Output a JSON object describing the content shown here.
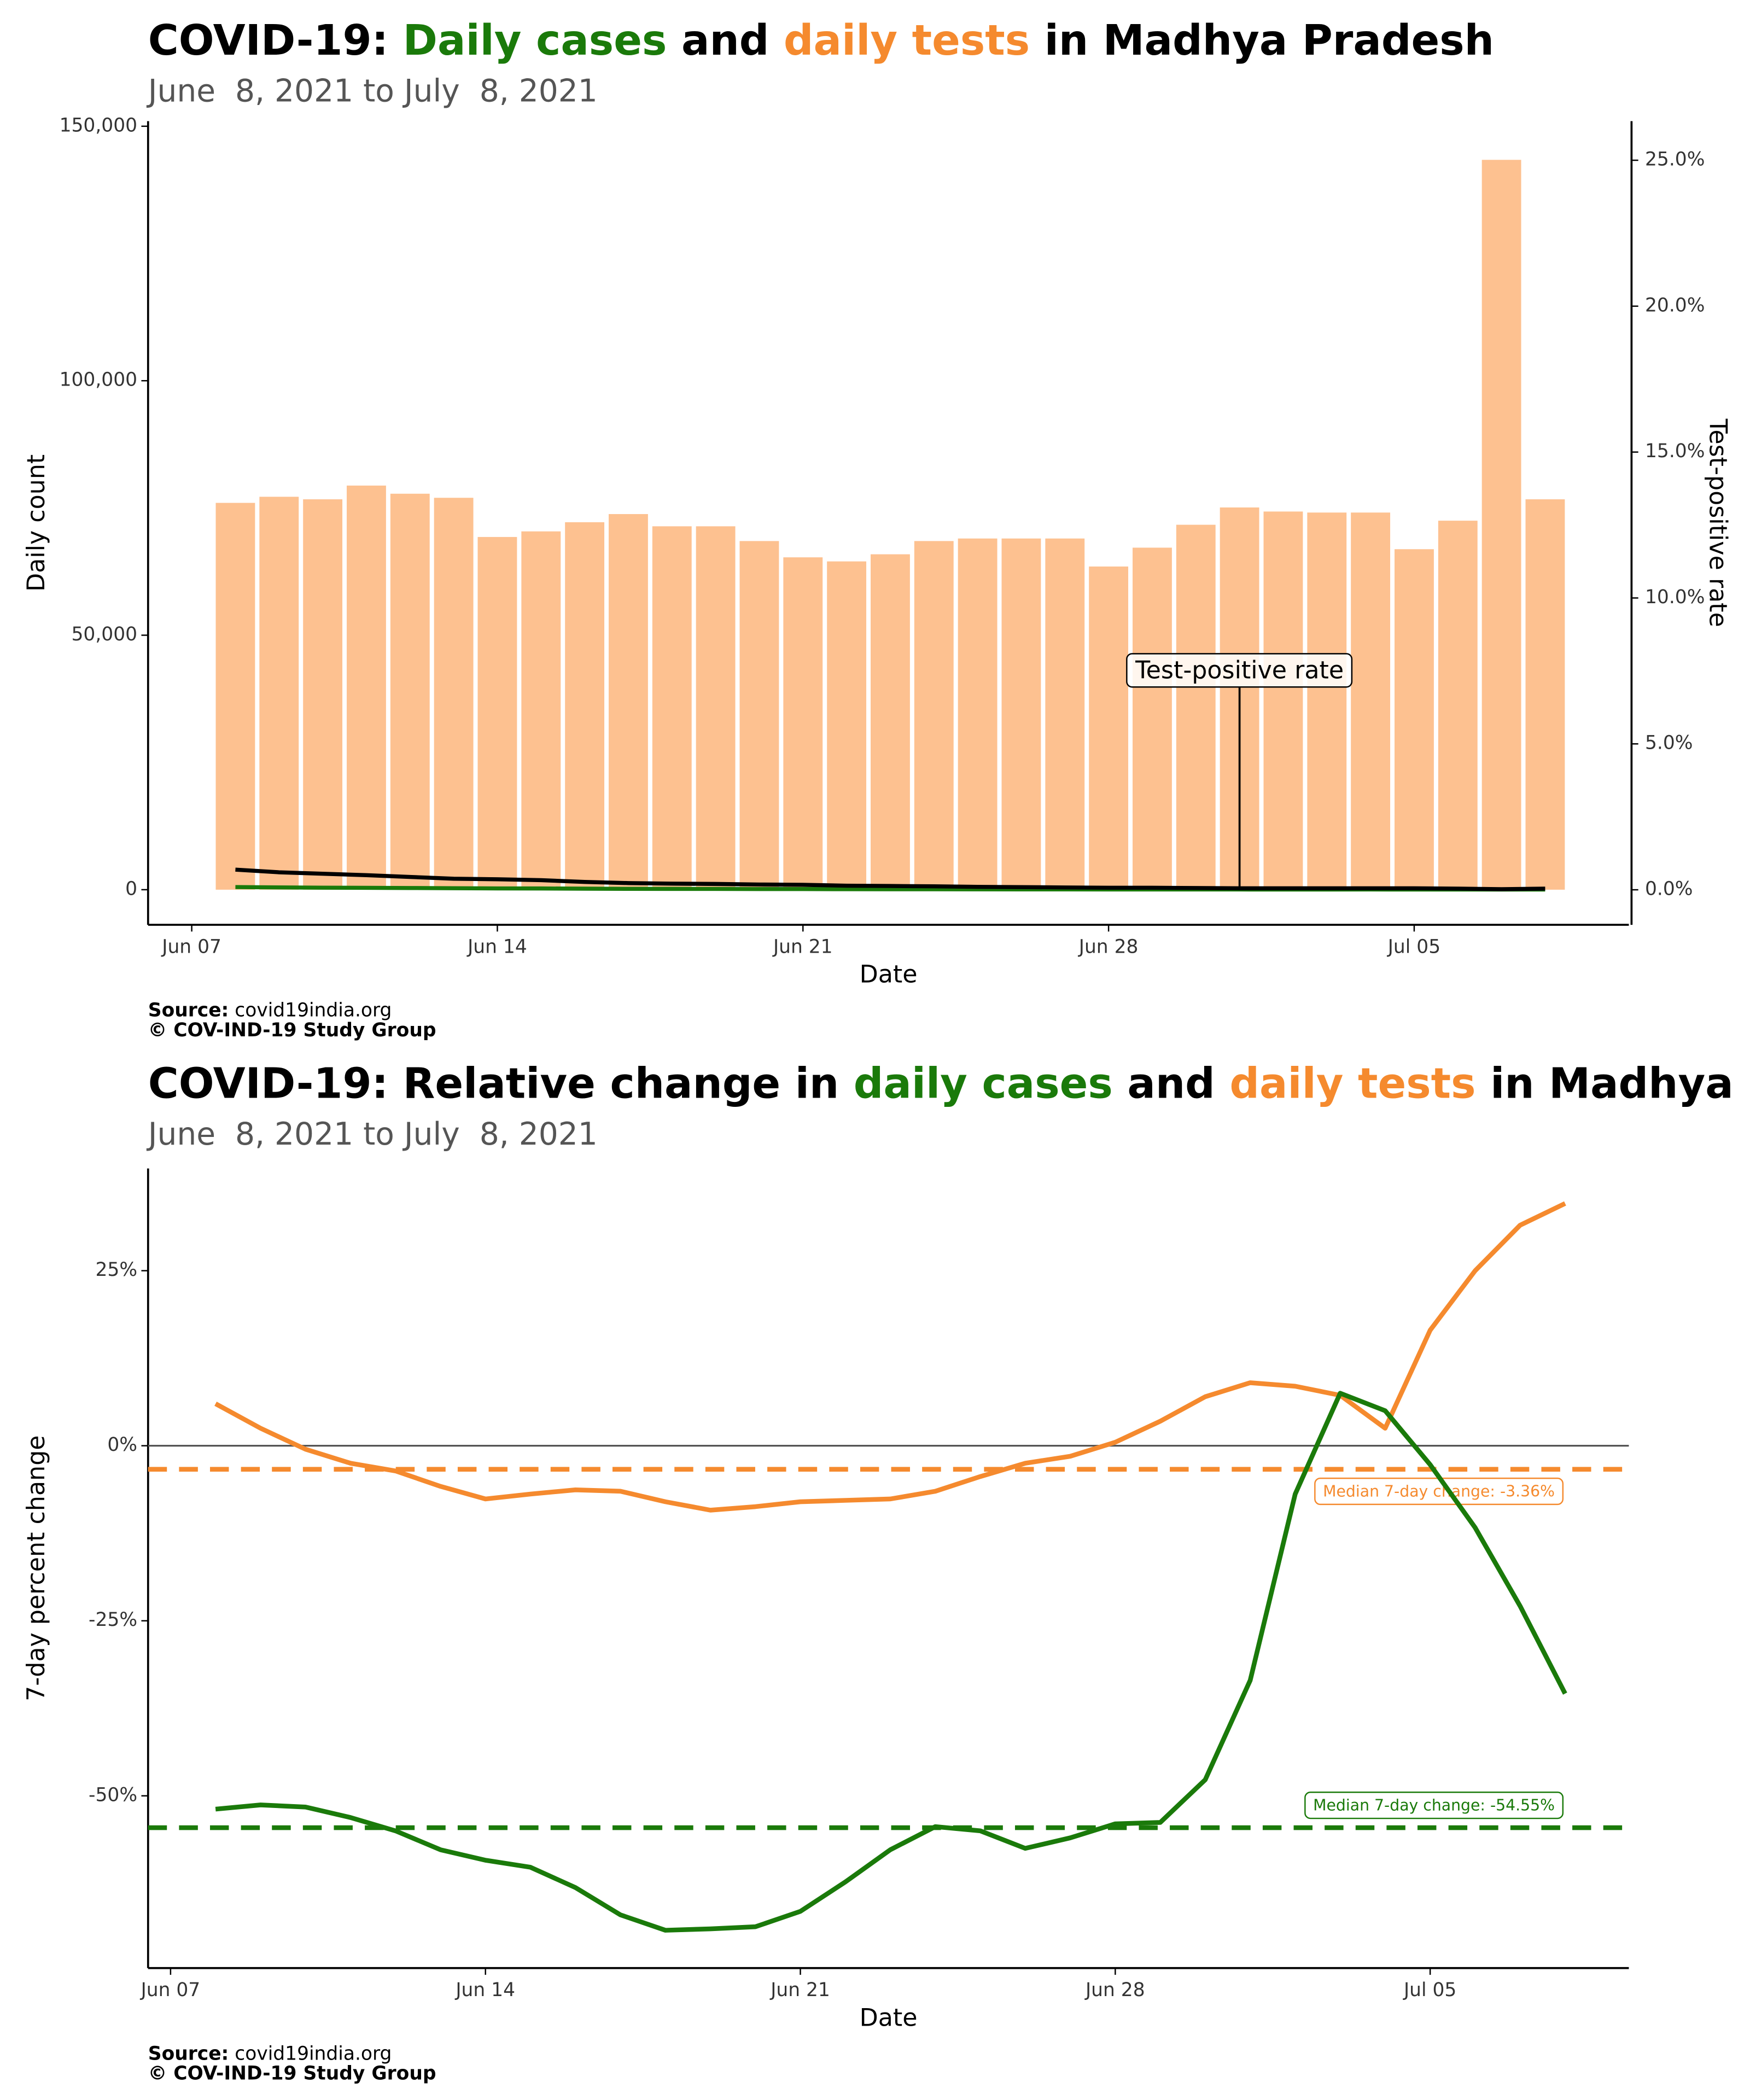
{
  "chart_data": [
    {
      "type": "bar",
      "title": [
        {
          "text": "COVID-19: "
        },
        {
          "text": "Daily cases",
          "color": "#1a7a0a"
        },
        {
          "text": " and "
        },
        {
          "text": "daily tests",
          "color": "#f58a2e"
        },
        {
          "text": " in Madhya Pradesh"
        }
      ],
      "subtitle": "June  8, 2021 to July  8, 2021",
      "x_label": "Date",
      "y_label": "Daily count",
      "y2_label": "Test-positive rate",
      "source_label": "Source:",
      "source": "covid19india.org",
      "credit": "© COV-IND-19 Study Group",
      "x": [
        "2021-06-08",
        "2021-06-09",
        "2021-06-10",
        "2021-06-11",
        "2021-06-12",
        "2021-06-13",
        "2021-06-14",
        "2021-06-15",
        "2021-06-16",
        "2021-06-17",
        "2021-06-18",
        "2021-06-19",
        "2021-06-20",
        "2021-06-21",
        "2021-06-22",
        "2021-06-23",
        "2021-06-24",
        "2021-06-25",
        "2021-06-26",
        "2021-06-27",
        "2021-06-28",
        "2021-06-29",
        "2021-06-30",
        "2021-07-01",
        "2021-07-02",
        "2021-07-03",
        "2021-07-04",
        "2021-07-05",
        "2021-07-06",
        "2021-07-07",
        "2021-07-08"
      ],
      "xlim": [
        "2021-06-06T00:00",
        "2021-07-09T22:00"
      ],
      "xticks": [
        {
          "value": "2021-06-07",
          "label": "Jun 07"
        },
        {
          "value": "2021-06-14",
          "label": "Jun 14"
        },
        {
          "value": "2021-06-21",
          "label": "Jun 21"
        },
        {
          "value": "2021-06-28",
          "label": "Jun 28"
        },
        {
          "value": "2021-07-05",
          "label": "Jul 05"
        }
      ],
      "ylim": [
        -6900,
        151000
      ],
      "yticks": [
        0,
        {
          "value": 50000,
          "label": "50,000"
        },
        {
          "value": 100000,
          "label": "100,000"
        },
        {
          "value": 150000,
          "label": "150,000"
        }
      ],
      "y2lim": [
        -1.2,
        26.34
      ],
      "y2ticks": [
        {
          "value": 0,
          "label": "0.0%"
        },
        {
          "value": 5,
          "label": "5.0%"
        },
        {
          "value": 10,
          "label": "10.0%"
        },
        {
          "value": 15,
          "label": "15.0%"
        },
        {
          "value": 20,
          "label": "20.0%"
        },
        {
          "value": 25,
          "label": "25.0%"
        }
      ],
      "series": [
        {
          "type": "bar",
          "color": "#fdc190",
          "values": [
            76000,
            77200,
            76700,
            79400,
            77800,
            77000,
            69300,
            70400,
            72200,
            73800,
            71400,
            71400,
            68500,
            65300,
            64500,
            65900,
            68500,
            69000,
            69000,
            69000,
            63500,
            67200,
            71700,
            75100,
            74300,
            74100,
            74100,
            66900,
            72500,
            143400,
            76700
          ]
        },
        {
          "type": "line",
          "color": "#1a7a0a",
          "values": [
            520,
            450,
            400,
            370,
            330,
            290,
            250,
            240,
            200,
            170,
            160,
            150,
            130,
            120,
            100,
            90,
            85,
            70,
            60,
            55,
            50,
            45,
            45,
            40,
            35,
            38,
            40,
            35,
            30,
            30,
            28
          ]
        },
        {
          "type": "line",
          "name": "Test-positive rate",
          "axis": "y2",
          "color": "#000000",
          "values": [
            0.69,
            0.6,
            0.55,
            0.5,
            0.44,
            0.38,
            0.36,
            0.33,
            0.27,
            0.23,
            0.21,
            0.2,
            0.18,
            0.17,
            0.14,
            0.13,
            0.12,
            0.1,
            0.09,
            0.08,
            0.07,
            0.07,
            0.06,
            0.05,
            0.05,
            0.05,
            0.05,
            0.05,
            0.04,
            0.02,
            0.04
          ]
        }
      ]
    },
    {
      "type": "line",
      "title": [
        {
          "text": "COVID-19: Relative change in "
        },
        {
          "text": "daily cases",
          "color": "#1a7a0a"
        },
        {
          "text": " and "
        },
        {
          "text": "daily tests",
          "color": "#f58a2e"
        },
        {
          "text": " in Madhya Pradesh"
        }
      ],
      "subtitle": "June  8, 2021 to July  8, 2021",
      "x_label": "Date",
      "y_label": "7-day percent change",
      "source_label": "Source:",
      "source": "covid19india.org",
      "credit": "© COV-IND-19 Study Group",
      "zero_line": true,
      "x": [
        "2021-06-08",
        "2021-06-09",
        "2021-06-10",
        "2021-06-11",
        "2021-06-12",
        "2021-06-13",
        "2021-06-14",
        "2021-06-15",
        "2021-06-16",
        "2021-06-17",
        "2021-06-18",
        "2021-06-19",
        "2021-06-20",
        "2021-06-21",
        "2021-06-22",
        "2021-06-23",
        "2021-06-24",
        "2021-06-25",
        "2021-06-26",
        "2021-06-27",
        "2021-06-28",
        "2021-06-29",
        "2021-06-30",
        "2021-07-01",
        "2021-07-02",
        "2021-07-03",
        "2021-07-04",
        "2021-07-05",
        "2021-07-06",
        "2021-07-07",
        "2021-07-08"
      ],
      "xlim": [
        "2021-06-06T12:00",
        "2021-07-09T10:00"
      ],
      "xticks": [
        {
          "value": "2021-06-07",
          "label": "Jun 07"
        },
        {
          "value": "2021-06-14",
          "label": "Jun 14"
        },
        {
          "value": "2021-06-21",
          "label": "Jun 21"
        },
        {
          "value": "2021-06-28",
          "label": "Jun 28"
        },
        {
          "value": "2021-07-05",
          "label": "Jul 05"
        }
      ],
      "ylim": [
        -74.6,
        39.6
      ],
      "yticks": [
        {
          "value": -50,
          "label": "-50%"
        },
        {
          "value": -25,
          "label": "-25%"
        },
        {
          "value": 0,
          "label": "0%"
        },
        {
          "value": 25,
          "label": "25%"
        }
      ],
      "series": [
        {
          "color": "#f58a2e",
          "values": [
            6.0,
            2.5,
            -0.5,
            -2.5,
            -3.6,
            -5.8,
            -7.6,
            -6.9,
            -6.3,
            -6.5,
            -8.0,
            -9.2,
            -8.7,
            -8.0,
            -7.8,
            -7.6,
            -6.5,
            -4.4,
            -2.5,
            -1.5,
            0.5,
            3.5,
            7.0,
            9.0,
            8.5,
            7.2,
            2.5,
            16.5,
            25.0,
            31.5,
            34.6
          ],
          "median": -3.36,
          "median_label": "Median 7-day change: -3.36%"
        },
        {
          "color": "#1a7a0a",
          "values": [
            -51.9,
            -51.3,
            -51.6,
            -53.1,
            -55.0,
            -57.7,
            -59.2,
            -60.2,
            -63.1,
            -67.0,
            -69.2,
            -69.0,
            -68.7,
            -66.5,
            -62.3,
            -57.7,
            -54.4,
            -55.0,
            -57.5,
            -56.0,
            -54.0,
            -53.8,
            -47.7,
            -33.5,
            -6.9,
            7.5,
            5.0,
            -2.7,
            -11.7,
            -22.9,
            -35.4
          ],
          "median": -54.55,
          "median_label": "Median 7-day change: -54.55%"
        }
      ]
    }
  ]
}
